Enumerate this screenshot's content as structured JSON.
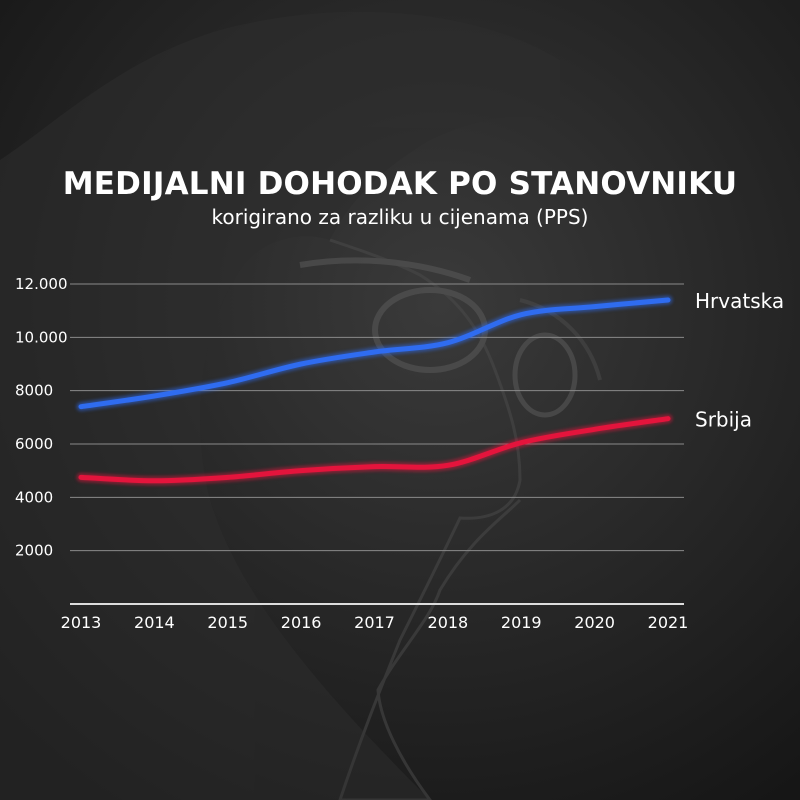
{
  "chart_data": {
    "type": "line",
    "title": "MEDIJALNI DOHODAK PO STANOVNIKU",
    "subtitle": "korigirano za razliku u cijenama (PPS)",
    "x": [
      "2013",
      "2014",
      "2015",
      "2016",
      "2017",
      "2018",
      "2019",
      "2020",
      "2021"
    ],
    "y_ticks": [
      "2000",
      "4000",
      "6000",
      "8000",
      "10.000",
      "12.000"
    ],
    "y_tick_values": [
      2000,
      4000,
      6000,
      8000,
      10000,
      12000
    ],
    "ylim": [
      0,
      12000
    ],
    "grid": true,
    "series": [
      {
        "name": "Hrvatska",
        "color": "#2f6cf0",
        "values": [
          7400,
          7800,
          8300,
          9000,
          9450,
          9800,
          10850,
          11150,
          11400
        ]
      },
      {
        "name": "Srbija",
        "color": "#e4143c",
        "values": [
          4750,
          4620,
          4750,
          5000,
          5150,
          5200,
          6050,
          6550,
          6950
        ]
      }
    ]
  }
}
